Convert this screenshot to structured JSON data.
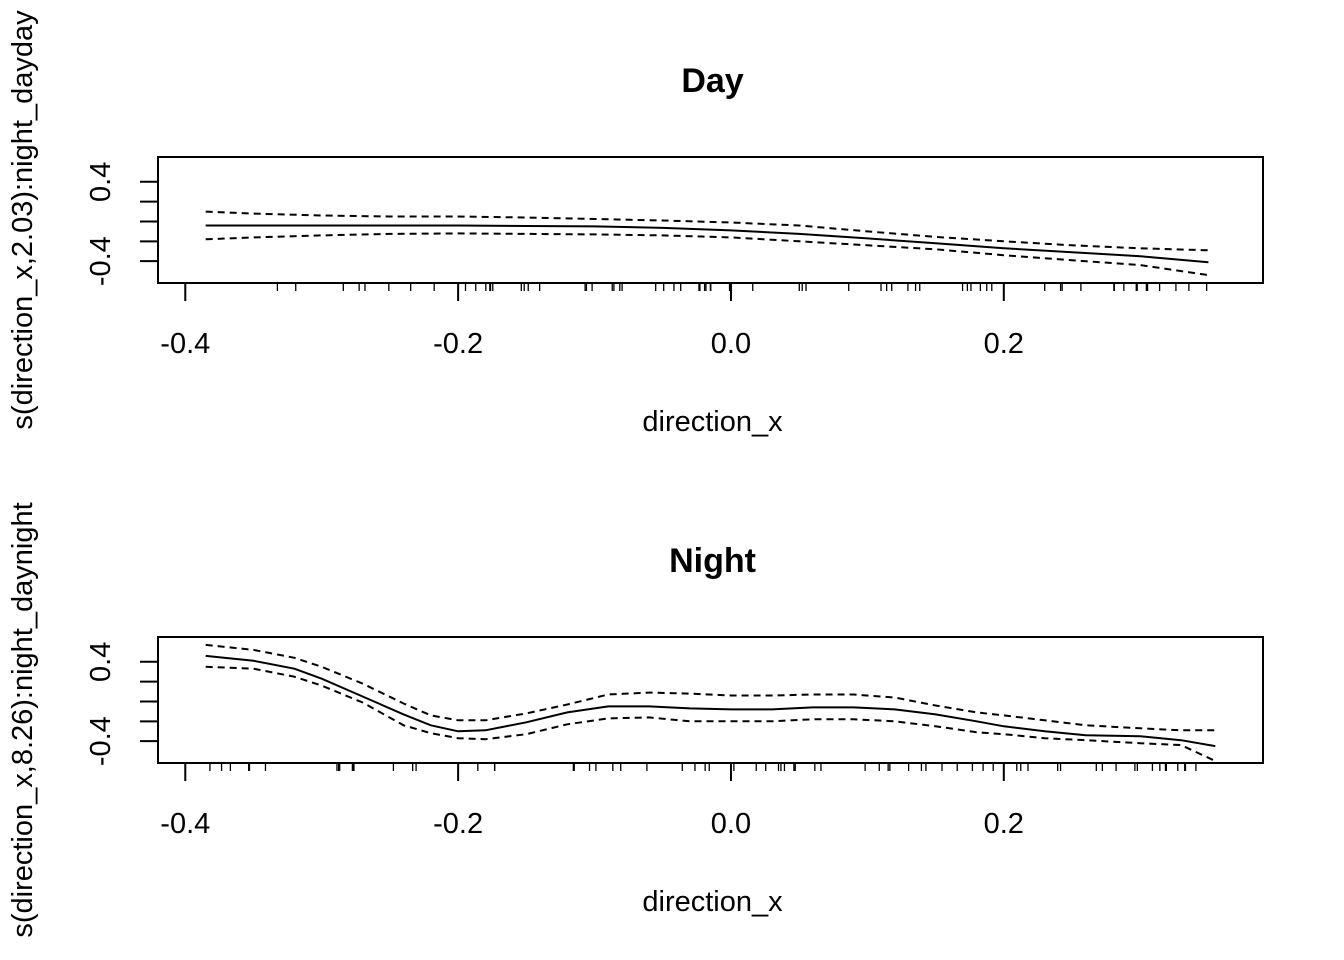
{
  "chart_data": [
    {
      "type": "line",
      "title": "Day",
      "xlabel": "direction_x",
      "ylabel": "s(direction_x,2.03):night_dayday",
      "xlim": [
        -0.42,
        0.39
      ],
      "ylim": [
        -0.62,
        0.65
      ],
      "x_ticks": [
        "-0.4",
        "-0.2",
        "0.0",
        "0.2"
      ],
      "y_ticks": [
        "-0.4",
        "0.4"
      ],
      "x_tick_values": [
        -0.4,
        -0.2,
        0.0,
        0.2
      ],
      "y_tick_values": [
        -0.4,
        -0.2,
        0.0,
        0.2,
        0.4
      ],
      "y_labeled_values": [
        -0.4,
        0.4
      ],
      "grid": false,
      "x": [
        -0.385,
        -0.35,
        -0.3,
        -0.25,
        -0.2,
        -0.15,
        -0.1,
        -0.05,
        0.0,
        0.05,
        0.1,
        0.15,
        0.2,
        0.25,
        0.3,
        0.35
      ],
      "series": [
        {
          "name": "",
          "style": "solid",
          "values": [
            -0.04,
            -0.04,
            -0.04,
            -0.04,
            -0.04,
            -0.045,
            -0.05,
            -0.065,
            -0.09,
            -0.125,
            -0.17,
            -0.22,
            -0.27,
            -0.31,
            -0.35,
            -0.41
          ]
        },
        {
          "name": "",
          "style": "dashed",
          "values": [
            0.1,
            0.08,
            0.06,
            0.05,
            0.05,
            0.04,
            0.025,
            0.01,
            -0.01,
            -0.04,
            -0.1,
            -0.155,
            -0.2,
            -0.24,
            -0.27,
            -0.29
          ]
        },
        {
          "name": "",
          "style": "dashed",
          "values": [
            -0.18,
            -0.16,
            -0.14,
            -0.125,
            -0.12,
            -0.125,
            -0.13,
            -0.14,
            -0.16,
            -0.2,
            -0.24,
            -0.28,
            -0.34,
            -0.39,
            -0.44,
            -0.54
          ]
        }
      ]
    },
    {
      "type": "line",
      "title": "Night",
      "xlabel": "direction_x",
      "ylabel": "s(direction_x,8.26):night_daynight",
      "xlim": [
        -0.42,
        0.39
      ],
      "ylim": [
        -0.62,
        0.65
      ],
      "x_ticks": [
        "-0.4",
        "-0.2",
        "0.0",
        "0.2"
      ],
      "y_ticks": [
        "-0.4",
        "0.4"
      ],
      "x_tick_values": [
        -0.4,
        -0.2,
        0.0,
        0.2
      ],
      "y_tick_values": [
        -0.4,
        -0.2,
        0.0,
        0.2,
        0.4
      ],
      "y_labeled_values": [
        -0.4,
        0.4
      ],
      "grid": false,
      "x": [
        -0.385,
        -0.35,
        -0.32,
        -0.3,
        -0.27,
        -0.24,
        -0.22,
        -0.2,
        -0.18,
        -0.15,
        -0.12,
        -0.09,
        -0.06,
        -0.03,
        0.0,
        0.03,
        0.06,
        0.09,
        0.12,
        0.15,
        0.18,
        0.2,
        0.23,
        0.26,
        0.3,
        0.33,
        0.355
      ],
      "series": [
        {
          "name": "",
          "style": "solid",
          "values": [
            0.46,
            0.41,
            0.33,
            0.23,
            0.05,
            -0.13,
            -0.24,
            -0.3,
            -0.29,
            -0.21,
            -0.11,
            -0.05,
            -0.05,
            -0.07,
            -0.08,
            -0.08,
            -0.06,
            -0.06,
            -0.08,
            -0.13,
            -0.2,
            -0.25,
            -0.3,
            -0.34,
            -0.35,
            -0.39,
            -0.45
          ]
        },
        {
          "name": "",
          "style": "dashed",
          "values": [
            0.57,
            0.52,
            0.44,
            0.35,
            0.18,
            -0.02,
            -0.14,
            -0.19,
            -0.19,
            -0.12,
            -0.03,
            0.07,
            0.09,
            0.08,
            0.06,
            0.06,
            0.07,
            0.07,
            0.04,
            -0.04,
            -0.11,
            -0.14,
            -0.19,
            -0.24,
            -0.27,
            -0.29,
            -0.29
          ]
        },
        {
          "name": "",
          "style": "dashed",
          "values": [
            0.35,
            0.33,
            0.25,
            0.16,
            -0.01,
            -0.24,
            -0.32,
            -0.37,
            -0.38,
            -0.33,
            -0.23,
            -0.17,
            -0.16,
            -0.2,
            -0.2,
            -0.2,
            -0.18,
            -0.18,
            -0.2,
            -0.25,
            -0.31,
            -0.33,
            -0.37,
            -0.39,
            -0.42,
            -0.44,
            -0.6
          ]
        }
      ]
    }
  ]
}
